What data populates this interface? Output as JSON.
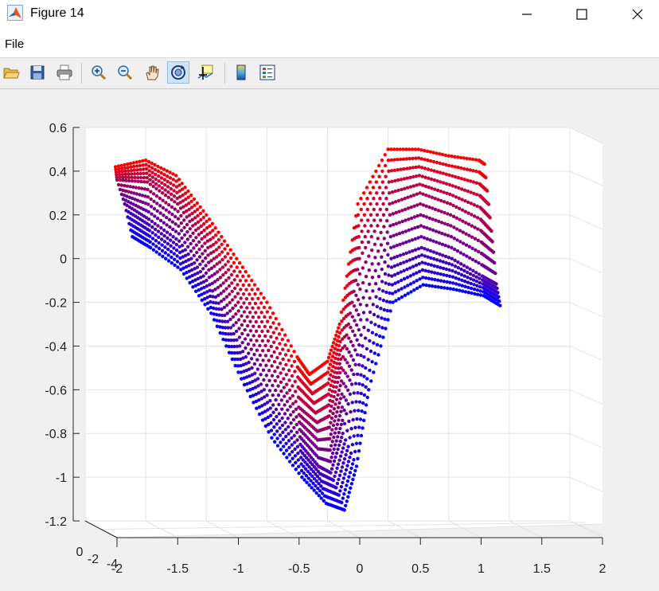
{
  "window": {
    "title": "Figure 14",
    "controls": [
      "minimize",
      "maximize",
      "close"
    ]
  },
  "menu": {
    "file": "File"
  },
  "toolbar": {
    "buttons": [
      {
        "name": "open-icon"
      },
      {
        "name": "save-icon"
      },
      {
        "name": "print-icon"
      },
      {
        "name": "zoom-in-icon"
      },
      {
        "name": "zoom-out-icon"
      },
      {
        "name": "pan-icon"
      },
      {
        "name": "rotate-3d-icon",
        "active": true
      },
      {
        "name": "data-cursor-icon"
      },
      {
        "name": "colorbar-icon"
      },
      {
        "name": "legend-icon"
      }
    ]
  },
  "chart_data": {
    "type": "scatter",
    "title": "",
    "xlabel": "",
    "ylabel": "",
    "zlabel": "",
    "xlim": [
      -2,
      2
    ],
    "zlim": [
      -1.2,
      0.6
    ],
    "xticks": [
      "-2",
      "-1.5",
      "-1",
      "-0.5",
      "0",
      "0.5",
      "1",
      "1.5",
      "2"
    ],
    "zticks": [
      "0.6",
      "0.4",
      "0.2",
      "0",
      "-0.2",
      "-0.4",
      "-0.6",
      "-0.8",
      "-1",
      "-1.2"
    ],
    "yticks": [
      "0",
      "-2",
      "-4"
    ],
    "grid": true,
    "view": "3d rotated, nearly frontal",
    "colormap": {
      "start": "#ff0000",
      "end": "#0000ff"
    },
    "series": [
      {
        "color": "#ff0000",
        "x": [
          -1.75,
          -1.5,
          -1.25,
          -1.0,
          -0.75,
          -0.5,
          -0.25,
          -0.15,
          0.0,
          0.1,
          0.25,
          0.5,
          0.75,
          1.0,
          1.25,
          1.3
        ],
        "z": [
          0.42,
          0.45,
          0.38,
          0.2,
          0.0,
          -0.2,
          -0.45,
          -0.53,
          -0.47,
          -0.3,
          0.25,
          0.5,
          0.5,
          0.47,
          0.45,
          0.43
        ]
      },
      {
        "color": "#aa0055",
        "x": [
          -1.75,
          -1.5,
          -1.25,
          -1.0,
          -0.75,
          -0.5,
          -0.25,
          -0.1,
          0.0,
          0.1,
          0.25,
          0.5,
          0.75,
          1.0,
          1.25,
          1.35
        ],
        "z": [
          0.36,
          0.35,
          0.25,
          0.05,
          -0.2,
          -0.42,
          -0.68,
          -0.75,
          -0.72,
          -0.5,
          0.0,
          0.25,
          0.3,
          0.25,
          0.18,
          0.12
        ]
      },
      {
        "color": "#5500aa",
        "x": [
          -1.7,
          -1.5,
          -1.25,
          -1.0,
          -0.75,
          -0.5,
          -0.25,
          -0.1,
          0.0,
          0.1,
          0.25,
          0.5,
          0.75,
          1.0,
          1.25,
          1.38
        ],
        "z": [
          0.25,
          0.18,
          0.08,
          -0.12,
          -0.4,
          -0.65,
          -0.85,
          -0.95,
          -0.98,
          -0.8,
          -0.35,
          0.0,
          0.05,
          0.0,
          -0.08,
          -0.12
        ]
      },
      {
        "color": "#0000ff",
        "x": [
          -1.65,
          -1.5,
          -1.25,
          -1.0,
          -0.75,
          -0.5,
          -0.25,
          -0.05,
          0.1,
          0.2,
          0.3,
          0.5,
          0.75,
          1.0,
          1.25,
          1.4
        ],
        "z": [
          0.1,
          0.05,
          -0.05,
          -0.25,
          -0.55,
          -0.82,
          -1.0,
          -1.12,
          -1.15,
          -0.95,
          -0.6,
          -0.2,
          -0.12,
          -0.14,
          -0.17,
          -0.22
        ]
      }
    ]
  }
}
